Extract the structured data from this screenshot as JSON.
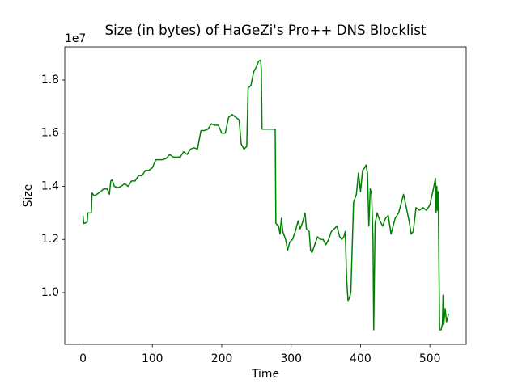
{
  "chart_data": {
    "type": "line",
    "title": "Size (in bytes) of HaGeZi's Pro++ DNS Blocklist",
    "x_label": "Time",
    "y_label": "Size",
    "y_offset_label": "1e7",
    "xlim": [
      -26.3,
      552.3
    ],
    "ylim": [
      0.8053,
      1.9247
    ],
    "xticks": [
      0,
      100,
      200,
      300,
      400,
      500
    ],
    "yticks": [
      {
        "value": 1.0,
        "label": "1.0"
      },
      {
        "value": 1.2,
        "label": "1.2"
      },
      {
        "value": 1.4,
        "label": "1.4"
      },
      {
        "value": 1.6,
        "label": "1.6"
      },
      {
        "value": 1.8,
        "label": "1.8"
      }
    ],
    "series": [
      {
        "color": "#008000",
        "x": [
          0,
          1,
          6,
          7,
          12,
          13,
          16,
          20,
          25,
          30,
          35,
          38,
          40,
          42,
          45,
          50,
          55,
          60,
          65,
          70,
          75,
          80,
          85,
          90,
          95,
          100,
          105,
          110,
          115,
          120,
          125,
          130,
          140,
          145,
          150,
          155,
          160,
          165,
          170,
          175,
          180,
          185,
          190,
          195,
          200,
          205,
          210,
          215,
          220,
          225,
          228,
          232,
          236,
          238,
          242,
          246,
          250,
          253,
          256,
          257,
          258,
          270,
          277,
          278,
          282,
          284,
          286,
          288,
          292,
          295,
          298,
          302,
          306,
          310,
          313,
          316,
          320,
          322,
          326,
          328,
          330,
          334,
          338,
          342,
          346,
          350,
          354,
          358,
          362,
          366,
          370,
          373,
          376,
          378,
          380,
          382,
          384,
          386,
          390,
          394,
          397,
          400,
          403,
          406,
          408,
          410,
          412,
          414,
          416,
          418,
          419,
          421,
          424,
          428,
          432,
          436,
          440,
          444,
          446,
          450,
          455,
          460,
          462,
          466,
          470,
          473,
          476,
          480,
          485,
          490,
          495,
          500,
          505,
          508,
          509,
          510,
          511,
          512,
          514,
          516,
          518,
          519,
          520,
          522,
          524,
          527
        ],
        "values": [
          1.29,
          1.26,
          1.265,
          1.3,
          1.3,
          1.375,
          1.365,
          1.37,
          1.38,
          1.39,
          1.39,
          1.37,
          1.42,
          1.425,
          1.4,
          1.395,
          1.4,
          1.41,
          1.4,
          1.42,
          1.42,
          1.44,
          1.44,
          1.46,
          1.46,
          1.47,
          1.5,
          1.5,
          1.5,
          1.505,
          1.52,
          1.51,
          1.51,
          1.53,
          1.52,
          1.54,
          1.545,
          1.54,
          1.61,
          1.61,
          1.615,
          1.635,
          1.63,
          1.63,
          1.6,
          1.6,
          1.66,
          1.67,
          1.66,
          1.65,
          1.56,
          1.54,
          1.55,
          1.77,
          1.78,
          1.83,
          1.85,
          1.87,
          1.875,
          1.84,
          1.615,
          1.615,
          1.615,
          1.26,
          1.25,
          1.22,
          1.28,
          1.23,
          1.2,
          1.16,
          1.19,
          1.2,
          1.23,
          1.27,
          1.24,
          1.26,
          1.3,
          1.24,
          1.23,
          1.16,
          1.15,
          1.18,
          1.21,
          1.2,
          1.2,
          1.18,
          1.2,
          1.23,
          1.24,
          1.25,
          1.21,
          1.2,
          1.21,
          1.23,
          1.05,
          0.97,
          0.98,
          1.0,
          1.34,
          1.37,
          1.45,
          1.38,
          1.46,
          1.47,
          1.48,
          1.45,
          1.25,
          1.39,
          1.37,
          1.2,
          0.86,
          1.26,
          1.3,
          1.27,
          1.25,
          1.28,
          1.29,
          1.22,
          1.24,
          1.28,
          1.3,
          1.35,
          1.37,
          1.32,
          1.27,
          1.22,
          1.23,
          1.32,
          1.31,
          1.32,
          1.31,
          1.33,
          1.39,
          1.43,
          1.3,
          1.4,
          1.31,
          1.38,
          0.86,
          0.86,
          0.88,
          0.99,
          0.88,
          0.94,
          0.89,
          0.92
        ]
      }
    ]
  }
}
